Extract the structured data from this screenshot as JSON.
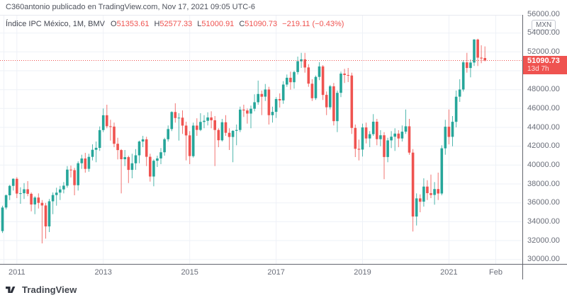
{
  "colors": {
    "up": "#26a69a",
    "down": "#ef5350",
    "grid": "#eef1f7",
    "pane_border_light": "#e7e9ef",
    "axis_border": "#62656e",
    "axis_text": "#6a6e79",
    "attribution_text": "#4e525c",
    "legend_text": "#434651",
    "last_price": "#ef5350"
  },
  "header": {
    "attribution": "C360antonio publicado en TradingView.com, Nov 17, 2021 09:05 UTC-6"
  },
  "legend": {
    "title": "Índice IPC México, 1M, BMV",
    "open_label": "O",
    "open": "51353.61",
    "high_label": "H",
    "high": "52577.33",
    "low_label": "L",
    "low": "51000.91",
    "close_label": "C",
    "close": "51090.73",
    "change": "−219.11 (−0.43%)"
  },
  "price_axis": {
    "currency": "MXN",
    "labels": [
      {
        "text": "56000.00",
        "value": 56000
      },
      {
        "text": "54000.00",
        "value": 54000
      },
      {
        "text": "52000.00",
        "value": 52000
      },
      {
        "text": "48000.00",
        "value": 48000
      },
      {
        "text": "46000.00",
        "value": 46000
      },
      {
        "text": "44000.00",
        "value": 44000
      },
      {
        "text": "42000.00",
        "value": 42000
      },
      {
        "text": "40000.00",
        "value": 40000
      },
      {
        "text": "38000.00",
        "value": 38000
      },
      {
        "text": "36000.00",
        "value": 36000
      },
      {
        "text": "34000.00",
        "value": 34000
      },
      {
        "text": "32000.00",
        "value": 32000
      },
      {
        "text": "30000.00",
        "value": 30000
      }
    ],
    "last_price_label": {
      "price": "51090.73",
      "countdown": "13d 7h"
    }
  },
  "time_axis": {
    "ticks": [
      {
        "label": "2011",
        "month_index": 4
      },
      {
        "label": "2013",
        "month_index": 28
      },
      {
        "label": "2015",
        "month_index": 52
      },
      {
        "label": "2017",
        "month_index": 76
      },
      {
        "label": "2019",
        "month_index": 100
      },
      {
        "label": "2021",
        "month_index": 124
      },
      {
        "label": "Feb",
        "month_index": 137
      }
    ]
  },
  "footer": {
    "brand": "TradingView"
  },
  "chart_data": {
    "type": "candlestick",
    "title": "Índice IPC México",
    "interval": "1M",
    "exchange": "BMV",
    "currency": "MXN",
    "start_month": "2010-09",
    "months_per_candle": 1,
    "y_axis": {
      "min": 30000,
      "max": 56000,
      "grid_step": 2000
    },
    "grid": true,
    "last_price": 51090.73,
    "last_change": "−219.11 (−0.43%)",
    "ohlc_format": [
      "open",
      "high",
      "low",
      "close"
    ],
    "candles": [
      [
        33000,
        35700,
        32800,
        35500
      ],
      [
        35500,
        36900,
        35300,
        36800
      ],
      [
        36800,
        37900,
        36300,
        37800
      ],
      [
        37800,
        38600,
        37300,
        38550
      ],
      [
        38550,
        38720,
        36500,
        36980
      ],
      [
        36980,
        37650,
        35900,
        37020
      ],
      [
        37020,
        38100,
        36400,
        37440
      ],
      [
        37440,
        38300,
        36700,
        36960
      ],
      [
        36960,
        37100,
        35100,
        35830
      ],
      [
        35830,
        36700,
        34800,
        36560
      ],
      [
        36560,
        37000,
        35400,
        36000
      ],
      [
        36000,
        36300,
        31700,
        35720
      ],
      [
        35720,
        36000,
        32200,
        33500
      ],
      [
        33500,
        36400,
        32900,
        36160
      ],
      [
        36160,
        37100,
        34800,
        36830
      ],
      [
        36830,
        37600,
        35700,
        37080
      ],
      [
        37080,
        37800,
        36300,
        37420
      ],
      [
        37420,
        38200,
        37000,
        37820
      ],
      [
        37820,
        39900,
        37600,
        39520
      ],
      [
        39520,
        39950,
        38700,
        39460
      ],
      [
        39460,
        39700,
        36800,
        37870
      ],
      [
        37870,
        40400,
        37300,
        40200
      ],
      [
        40200,
        41100,
        39600,
        40700
      ],
      [
        40700,
        41300,
        39200,
        39600
      ],
      [
        39600,
        41200,
        39300,
        40870
      ],
      [
        40870,
        42200,
        40500,
        41620
      ],
      [
        41620,
        42500,
        40300,
        41830
      ],
      [
        41830,
        44100,
        41500,
        43710
      ],
      [
        43710,
        46000,
        43500,
        45280
      ],
      [
        45280,
        46400,
        43900,
        44120
      ],
      [
        44120,
        44800,
        42600,
        44080
      ],
      [
        44080,
        44500,
        41900,
        42260
      ],
      [
        42260,
        42900,
        40600,
        41590
      ],
      [
        41590,
        41700,
        37000,
        40620
      ],
      [
        40620,
        41600,
        39900,
        40840
      ],
      [
        40840,
        41000,
        38100,
        39490
      ],
      [
        39490,
        41200,
        38600,
        40190
      ],
      [
        40190,
        41700,
        39500,
        41040
      ],
      [
        41040,
        42600,
        40200,
        42500
      ],
      [
        42500,
        43100,
        41900,
        42730
      ],
      [
        42730,
        43000,
        39900,
        40880
      ],
      [
        40880,
        41200,
        38250,
        38790
      ],
      [
        38790,
        40600,
        37750,
        40460
      ],
      [
        40460,
        41000,
        39800,
        40710
      ],
      [
        40710,
        41800,
        40100,
        41360
      ],
      [
        41360,
        42900,
        41000,
        42740
      ],
      [
        42740,
        44200,
        42500,
        43820
      ],
      [
        43820,
        45700,
        43600,
        45630
      ],
      [
        45630,
        46550,
        44500,
        44990
      ],
      [
        44990,
        45500,
        42600,
        45030
      ],
      [
        45030,
        45800,
        43300,
        44190
      ],
      [
        44190,
        44600,
        40500,
        43150
      ],
      [
        43150,
        43600,
        40100,
        40950
      ],
      [
        40950,
        44500,
        40800,
        44190
      ],
      [
        44190,
        44960,
        43100,
        43730
      ],
      [
        43730,
        45500,
        43600,
        44580
      ],
      [
        44580,
        45300,
        43900,
        44700
      ],
      [
        44700,
        45600,
        44200,
        45050
      ],
      [
        45050,
        45700,
        43900,
        44750
      ],
      [
        44750,
        45200,
        39900,
        43720
      ],
      [
        43720,
        43900,
        41900,
        42630
      ],
      [
        42630,
        44900,
        42500,
        44540
      ],
      [
        44540,
        45300,
        43100,
        43420
      ],
      [
        43420,
        43900,
        41600,
        42980
      ],
      [
        42980,
        43700,
        40300,
        43630
      ],
      [
        43630,
        44300,
        42100,
        43720
      ],
      [
        43720,
        46200,
        43500,
        45880
      ],
      [
        45880,
        46400,
        45100,
        45790
      ],
      [
        45790,
        46000,
        44400,
        45460
      ],
      [
        45460,
        46300,
        43900,
        45970
      ],
      [
        45970,
        47500,
        45700,
        46660
      ],
      [
        46660,
        48960,
        46400,
        47540
      ],
      [
        47540,
        47900,
        45300,
        47250
      ],
      [
        47250,
        48600,
        46800,
        48010
      ],
      [
        48010,
        48300,
        44300,
        45290
      ],
      [
        45290,
        46200,
        44500,
        45640
      ],
      [
        45640,
        47200,
        45000,
        47000
      ],
      [
        47000,
        47600,
        46100,
        46860
      ],
      [
        46860,
        48900,
        46500,
        48540
      ],
      [
        48540,
        49600,
        48300,
        49260
      ],
      [
        49260,
        49900,
        48000,
        48790
      ],
      [
        48790,
        50000,
        48100,
        49860
      ],
      [
        49860,
        51500,
        49600,
        51010
      ],
      [
        51010,
        51900,
        50300,
        51210
      ],
      [
        51210,
        51900,
        49800,
        50350
      ],
      [
        50350,
        50700,
        48300,
        48630
      ],
      [
        48630,
        49100,
        46800,
        47090
      ],
      [
        47090,
        49500,
        46900,
        49350
      ],
      [
        49350,
        50910,
        49000,
        50460
      ],
      [
        50460,
        50600,
        46900,
        47440
      ],
      [
        47440,
        47800,
        45300,
        46130
      ],
      [
        46130,
        48500,
        45900,
        48350
      ],
      [
        48350,
        48700,
        44200,
        44660
      ],
      [
        44660,
        47900,
        43500,
        47660
      ],
      [
        47660,
        49900,
        47200,
        49700
      ],
      [
        49700,
        50200,
        48700,
        49550
      ],
      [
        49550,
        50300,
        48800,
        49500
      ],
      [
        49500,
        49800,
        43300,
        43940
      ],
      [
        43940,
        44300,
        40850,
        41730
      ],
      [
        41730,
        42700,
        40500,
        41640
      ],
      [
        41640,
        44400,
        40900,
        43990
      ],
      [
        43990,
        44500,
        42300,
        42820
      ],
      [
        42820,
        43600,
        41900,
        43280
      ],
      [
        43280,
        45400,
        43100,
        44600
      ],
      [
        44600,
        44900,
        42100,
        42750
      ],
      [
        42750,
        43700,
        42000,
        43160
      ],
      [
        43160,
        43500,
        38500,
        40860
      ],
      [
        40860,
        42900,
        40300,
        42620
      ],
      [
        42620,
        43600,
        41800,
        43010
      ],
      [
        43010,
        43900,
        41500,
        43340
      ],
      [
        43340,
        43700,
        41900,
        42820
      ],
      [
        42820,
        44200,
        42500,
        43540
      ],
      [
        43540,
        45900,
        43300,
        44110
      ],
      [
        44110,
        44900,
        41100,
        41320
      ],
      [
        41320,
        41700,
        32960,
        34550
      ],
      [
        34550,
        37000,
        33600,
        36470
      ],
      [
        36470,
        36900,
        35000,
        36120
      ],
      [
        36120,
        38600,
        35600,
        37720
      ],
      [
        37720,
        38400,
        36300,
        37020
      ],
      [
        37020,
        39000,
        36500,
        36840
      ],
      [
        36840,
        38200,
        35800,
        37460
      ],
      [
        37460,
        39200,
        36300,
        36990
      ],
      [
        36990,
        42100,
        36800,
        41780
      ],
      [
        41780,
        44800,
        41100,
        44070
      ],
      [
        44070,
        45900,
        42200,
        42990
      ],
      [
        42990,
        45200,
        42000,
        44590
      ],
      [
        44590,
        47900,
        44000,
        47250
      ],
      [
        47250,
        49100,
        46700,
        48010
      ],
      [
        48010,
        51100,
        47800,
        50890
      ],
      [
        50890,
        51900,
        49800,
        50290
      ],
      [
        50290,
        51200,
        49300,
        50870
      ],
      [
        50870,
        53350,
        50500,
        53310
      ],
      [
        53310,
        53400,
        50500,
        51390
      ],
      [
        51390,
        52700,
        50800,
        51310
      ],
      [
        51353.61,
        52577.33,
        51000.91,
        51090.73
      ]
    ]
  }
}
